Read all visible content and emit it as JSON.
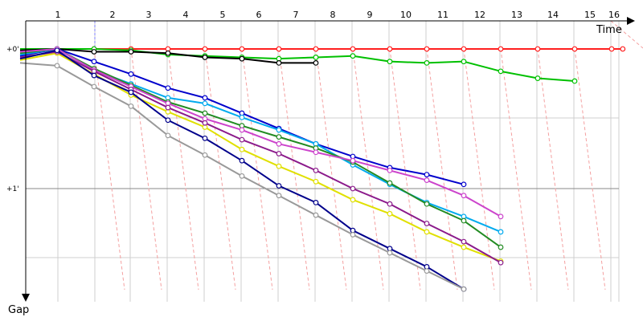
{
  "chart_data": {
    "type": "line",
    "xlabel": "Time",
    "ylabel": "Gap",
    "x_ticks": [
      "1",
      "2",
      "3",
      "4",
      "5",
      "6",
      "7",
      "8",
      "9",
      "10",
      "11",
      "12",
      "13",
      "14",
      "15",
      "16"
    ],
    "y_ticks": [
      {
        "label": "+0'",
        "value": 0
      },
      {
        "label": "+1'",
        "value": 1
      }
    ],
    "xlim": [
      0,
      16.3
    ],
    "ylim": [
      0,
      1.72
    ],
    "grid": true,
    "legend": "none",
    "series": [
      {
        "color": "#ff2020",
        "width": 2,
        "points": [
          [
            0,
            0.02
          ],
          [
            1,
            0.0
          ],
          [
            2,
            0.0
          ],
          [
            3,
            0.0
          ],
          [
            4,
            0.0
          ],
          [
            5,
            0.0
          ],
          [
            6,
            0.0
          ],
          [
            7,
            0.0
          ],
          [
            8,
            0.0
          ],
          [
            9,
            0.0
          ],
          [
            10,
            0.0
          ],
          [
            11,
            0.0
          ],
          [
            12,
            0.0
          ],
          [
            13,
            0.0
          ],
          [
            14,
            0.0
          ],
          [
            15,
            0.0
          ],
          [
            16,
            0.0
          ],
          [
            16.3,
            0.0
          ]
        ]
      },
      {
        "color": "#00c000",
        "width": 2,
        "points": [
          [
            0,
            0.0
          ],
          [
            1,
            0.0
          ],
          [
            2,
            0.0
          ],
          [
            3,
            0.01
          ],
          [
            4,
            0.04
          ],
          [
            5,
            0.05
          ],
          [
            6,
            0.06
          ],
          [
            7,
            0.07
          ],
          [
            8,
            0.06
          ],
          [
            9,
            0.05
          ],
          [
            10,
            0.09
          ],
          [
            11,
            0.1
          ],
          [
            12,
            0.09
          ],
          [
            13,
            0.16
          ],
          [
            14,
            0.21
          ],
          [
            15,
            0.23
          ]
        ]
      },
      {
        "color": "#000000",
        "width": 2,
        "points": [
          [
            0,
            0.01
          ],
          [
            1,
            0.0
          ],
          [
            2,
            0.02
          ],
          [
            3,
            0.02
          ],
          [
            4,
            0.03
          ],
          [
            5,
            0.06
          ],
          [
            6,
            0.07
          ],
          [
            7,
            0.1
          ],
          [
            8,
            0.1
          ]
        ]
      },
      {
        "color": "#0000cc",
        "width": 2,
        "points": [
          [
            0,
            0.05
          ],
          [
            1,
            0.0
          ],
          [
            2,
            0.09
          ],
          [
            3,
            0.18
          ],
          [
            4,
            0.28
          ],
          [
            5,
            0.35
          ],
          [
            6,
            0.46
          ],
          [
            7,
            0.57
          ],
          [
            8,
            0.68
          ],
          [
            9,
            0.77
          ],
          [
            10,
            0.85
          ],
          [
            11,
            0.9
          ],
          [
            12,
            0.97
          ]
        ]
      },
      {
        "color": "#00aaee",
        "width": 2,
        "points": [
          [
            0,
            0.04
          ],
          [
            1,
            0.0
          ],
          [
            2,
            0.15
          ],
          [
            3,
            0.25
          ],
          [
            4,
            0.35
          ],
          [
            5,
            0.39
          ],
          [
            6,
            0.49
          ],
          [
            7,
            0.58
          ],
          [
            8,
            0.68
          ],
          [
            9,
            0.83
          ],
          [
            10,
            0.97
          ],
          [
            11,
            1.1
          ],
          [
            12,
            1.2
          ],
          [
            13,
            1.31
          ]
        ]
      },
      {
        "color": "#228b22",
        "width": 2,
        "points": [
          [
            0,
            0.03
          ],
          [
            1,
            0.0
          ],
          [
            2,
            0.14
          ],
          [
            3,
            0.26
          ],
          [
            4,
            0.38
          ],
          [
            5,
            0.46
          ],
          [
            6,
            0.55
          ],
          [
            7,
            0.63
          ],
          [
            8,
            0.71
          ],
          [
            9,
            0.81
          ],
          [
            10,
            0.96
          ],
          [
            11,
            1.11
          ],
          [
            12,
            1.23
          ],
          [
            13,
            1.42
          ]
        ]
      },
      {
        "color": "#cc44cc",
        "width": 2,
        "points": [
          [
            0,
            0.02
          ],
          [
            1,
            0.0
          ],
          [
            2,
            0.15
          ],
          [
            3,
            0.27
          ],
          [
            4,
            0.39
          ],
          [
            5,
            0.5
          ],
          [
            6,
            0.58
          ],
          [
            7,
            0.68
          ],
          [
            8,
            0.74
          ],
          [
            9,
            0.8
          ],
          [
            10,
            0.87
          ],
          [
            11,
            0.94
          ],
          [
            12,
            1.05
          ],
          [
            13,
            1.2
          ]
        ]
      },
      {
        "color": "#e0e000",
        "width": 2,
        "points": [
          [
            0,
            0.08
          ],
          [
            1,
            0.03
          ],
          [
            2,
            0.18
          ],
          [
            3,
            0.33
          ],
          [
            4,
            0.45
          ],
          [
            5,
            0.56
          ],
          [
            6,
            0.72
          ],
          [
            7,
            0.84
          ],
          [
            8,
            0.95
          ],
          [
            9,
            1.08
          ],
          [
            10,
            1.18
          ],
          [
            11,
            1.31
          ],
          [
            12,
            1.42
          ],
          [
            13,
            1.52
          ]
        ]
      },
      {
        "color": "#8b1a8b",
        "width": 2,
        "points": [
          [
            0,
            0.06
          ],
          [
            1,
            0.02
          ],
          [
            2,
            0.16
          ],
          [
            3,
            0.29
          ],
          [
            4,
            0.42
          ],
          [
            5,
            0.53
          ],
          [
            6,
            0.65
          ],
          [
            7,
            0.75
          ],
          [
            8,
            0.87
          ],
          [
            9,
            1.0
          ],
          [
            10,
            1.11
          ],
          [
            11,
            1.25
          ],
          [
            12,
            1.38
          ],
          [
            13,
            1.53
          ]
        ]
      },
      {
        "color": "#00008b",
        "width": 2,
        "points": [
          [
            0,
            0.07
          ],
          [
            1,
            0.01
          ],
          [
            2,
            0.19
          ],
          [
            3,
            0.31
          ],
          [
            4,
            0.51
          ],
          [
            5,
            0.64
          ],
          [
            6,
            0.8
          ],
          [
            7,
            0.98
          ],
          [
            8,
            1.1
          ],
          [
            9,
            1.3
          ],
          [
            10,
            1.43
          ],
          [
            11,
            1.56
          ],
          [
            12,
            1.72
          ]
        ]
      },
      {
        "color": "#999999",
        "width": 2,
        "points": [
          [
            0,
            0.1
          ],
          [
            1,
            0.12
          ],
          [
            2,
            0.27
          ],
          [
            3,
            0.41
          ],
          [
            4,
            0.62
          ],
          [
            5,
            0.76
          ],
          [
            6,
            0.91
          ],
          [
            7,
            1.05
          ],
          [
            8,
            1.19
          ],
          [
            9,
            1.33
          ],
          [
            10,
            1.46
          ],
          [
            11,
            1.59
          ],
          [
            12,
            1.72
          ]
        ]
      }
    ]
  }
}
